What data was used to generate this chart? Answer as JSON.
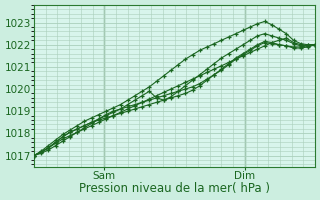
{
  "bg_color": "#cceee0",
  "plot_bg_color": "#d8f5ec",
  "grid_color": "#aacfbb",
  "line_color": "#1a6620",
  "marker_color": "#1a6620",
  "xlabel": "Pression niveau de la mer( hPa )",
  "xlabel_fontsize": 8.5,
  "ytick_labels": [
    1017,
    1018,
    1019,
    1020,
    1021,
    1022,
    1023
  ],
  "ytick_fontsize": 7.5,
  "xtick_fontsize": 7.5,
  "ylim": [
    1016.5,
    1023.8
  ],
  "xlim": [
    0,
    96
  ],
  "xtick_positions": [
    24,
    72
  ],
  "xtick_labels": [
    "Sam",
    "Dim"
  ],
  "series": [
    [
      1017.0,
      1017.15,
      1017.35,
      1017.55,
      1017.75,
      1017.9,
      1018.05,
      1018.2,
      1018.35,
      1018.5,
      1018.65,
      1018.8,
      1018.95,
      1019.1,
      1019.25,
      1019.4,
      1019.55,
      1019.7,
      1019.85,
      1020.0,
      1020.15,
      1020.3,
      1020.45,
      1020.6,
      1020.75,
      1020.9,
      1021.05,
      1021.2,
      1021.35,
      1021.5,
      1021.65,
      1021.8,
      1021.95,
      1022.1,
      1022.2,
      1022.3,
      1022.1,
      1022.0,
      1021.95,
      1022.0
    ],
    [
      1017.0,
      1017.2,
      1017.45,
      1017.7,
      1017.95,
      1018.15,
      1018.35,
      1018.55,
      1018.7,
      1018.85,
      1019.0,
      1019.15,
      1019.3,
      1019.5,
      1019.7,
      1019.9,
      1020.1,
      1020.35,
      1020.6,
      1020.85,
      1021.1,
      1021.35,
      1021.55,
      1021.75,
      1021.9,
      1022.05,
      1022.2,
      1022.35,
      1022.5,
      1022.65,
      1022.8,
      1022.95,
      1023.05,
      1022.9,
      1022.7,
      1022.5,
      1022.2,
      1022.05,
      1022.0,
      1022.0
    ],
    [
      1017.0,
      1017.15,
      1017.35,
      1017.6,
      1017.85,
      1018.05,
      1018.2,
      1018.35,
      1018.5,
      1018.65,
      1018.8,
      1018.95,
      1019.1,
      1019.3,
      1019.5,
      1019.7,
      1019.9,
      1019.6,
      1019.5,
      1019.65,
      1019.9,
      1020.15,
      1020.4,
      1020.65,
      1020.9,
      1021.15,
      1021.4,
      1021.6,
      1021.8,
      1022.0,
      1022.2,
      1022.4,
      1022.5,
      1022.4,
      1022.3,
      1022.2,
      1022.05,
      1021.95,
      1022.0,
      1022.0
    ],
    [
      1017.0,
      1017.15,
      1017.35,
      1017.6,
      1017.85,
      1018.05,
      1018.2,
      1018.35,
      1018.5,
      1018.6,
      1018.7,
      1018.8,
      1018.9,
      1019.0,
      1019.1,
      1019.2,
      1019.3,
      1019.4,
      1019.5,
      1019.6,
      1019.7,
      1019.8,
      1019.95,
      1020.15,
      1020.4,
      1020.65,
      1020.9,
      1021.15,
      1021.4,
      1021.6,
      1021.8,
      1022.0,
      1022.15,
      1022.1,
      1022.0,
      1021.95,
      1021.9,
      1021.9,
      1021.95,
      1022.0
    ],
    [
      1017.0,
      1017.1,
      1017.25,
      1017.45,
      1017.65,
      1017.85,
      1018.05,
      1018.25,
      1018.45,
      1018.65,
      1018.85,
      1019.0,
      1019.1,
      1019.2,
      1019.3,
      1019.4,
      1019.5,
      1019.6,
      1019.7,
      1019.8,
      1019.9,
      1020.0,
      1020.1,
      1020.25,
      1020.45,
      1020.65,
      1020.85,
      1021.1,
      1021.35,
      1021.55,
      1021.75,
      1021.95,
      1022.1,
      1022.05,
      1022.0,
      1021.95,
      1021.85,
      1021.85,
      1021.9,
      1022.0
    ]
  ]
}
